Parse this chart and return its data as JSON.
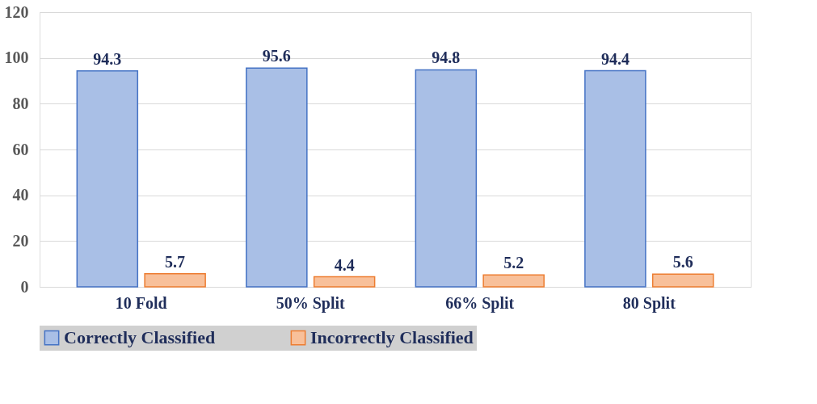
{
  "chart_data": {
    "type": "bar",
    "categories": [
      "10 Fold",
      "50% Split",
      "66% Split",
      "80 Split"
    ],
    "series": [
      {
        "name": "Correctly Classified",
        "color": "#a9bfe6",
        "values": [
          94.3,
          95.6,
          94.8,
          94.4
        ]
      },
      {
        "name": "Incorrectly Classified",
        "color": "#f8c09a",
        "values": [
          5.7,
          4.4,
          5.2,
          5.6
        ]
      }
    ],
    "ylim": [
      0,
      120
    ],
    "yticks": [
      0,
      20,
      40,
      60,
      80,
      100,
      120
    ],
    "grid": "y",
    "legend": "bottom",
    "data_labels": true
  }
}
